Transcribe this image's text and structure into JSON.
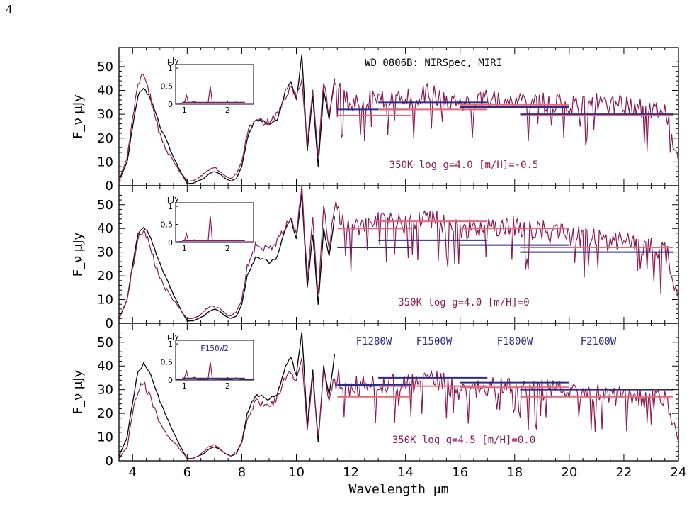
{
  "page": {
    "page_number": "4"
  },
  "colors": {
    "observed": "#000000",
    "model": "#8b1a55",
    "miri_observed": "#2b2b8c",
    "miri_model": "#e06a78",
    "text_model": "#8b1a55",
    "text_filter": "#2b2b8c"
  },
  "chart_data": [
    {
      "type": "line",
      "panel": "top",
      "title": "WD 0806B: NIRSpec, MIRI",
      "annotation": "350K log g=4.0 [m/H]=-0.5",
      "xlabel": "",
      "ylabel": "F_ν μJy",
      "xlim": [
        3.5,
        24
      ],
      "ylim": [
        0,
        58
      ],
      "x_ticks": [
        "4",
        "6",
        "8",
        "10",
        "12",
        "14",
        "16",
        "18",
        "20",
        "22",
        "24"
      ],
      "y_ticks": [
        "0",
        "10",
        "20",
        "30",
        "40",
        "50"
      ],
      "series": [
        {
          "role": "observed",
          "x": [
            3.5,
            3.8,
            4.0,
            4.2,
            4.4,
            4.6,
            4.8,
            5.0,
            5.2,
            5.5,
            5.8,
            6.0,
            6.2,
            6.4,
            6.6,
            6.8,
            7.0,
            7.2,
            7.4,
            7.6,
            7.8,
            8.0,
            8.2,
            8.5,
            8.8,
            9.0,
            9.3,
            9.6,
            9.8,
            10.0,
            10.2,
            10.4,
            10.6,
            10.8,
            11.0,
            11.2,
            11.4
          ],
          "y": [
            2,
            10,
            25,
            38,
            41,
            38,
            32,
            25,
            20,
            12,
            5,
            1,
            1,
            2,
            3,
            5,
            6,
            5,
            3,
            2,
            3,
            8,
            20,
            28,
            27,
            26,
            28,
            40,
            44,
            36,
            55,
            15,
            38,
            8,
            40,
            28,
            45
          ]
        },
        {
          "role": "model",
          "x": [
            3.5,
            3.8,
            4.0,
            4.2,
            4.4,
            4.6,
            4.8,
            5.0,
            5.2,
            5.5,
            5.8,
            6.0,
            6.2,
            6.4,
            6.6,
            6.8,
            7.0,
            7.2,
            7.4,
            7.6,
            7.8,
            8.0,
            8.2,
            8.5,
            8.8,
            9.0,
            9.3,
            9.6,
            9.8,
            10.0,
            10.2,
            10.4,
            10.6,
            10.8,
            11.0,
            11.2,
            11.4,
            12,
            13,
            14,
            15,
            16,
            17,
            18,
            19,
            20,
            21,
            22,
            23,
            23.6,
            24
          ],
          "y": [
            2,
            12,
            30,
            42,
            48,
            40,
            30,
            22,
            16,
            10,
            5,
            2,
            2,
            3,
            5,
            7,
            8,
            6,
            4,
            3,
            5,
            10,
            22,
            29,
            27,
            27,
            30,
            38,
            42,
            38,
            45,
            18,
            42,
            12,
            44,
            30,
            42,
            35,
            38,
            37,
            40,
            33,
            37,
            37,
            36,
            35,
            36,
            34,
            33,
            30,
            10
          ]
        }
      ],
      "miri": [
        {
          "x_range": [
            11.5,
            14.2
          ],
          "observed": 32,
          "model": 29.5
        },
        {
          "x_range": [
            13.0,
            17.0
          ],
          "observed": 35,
          "model": 32
        },
        {
          "x_range": [
            16.0,
            20.0
          ],
          "observed": 33,
          "model": 34
        },
        {
          "x_range": [
            18.2,
            23.8
          ],
          "observed": 30,
          "model": 29.5
        }
      ],
      "inset": {
        "ylabel": "μJy",
        "x_ticks": [
          "1",
          "2"
        ],
        "y_ticks": [
          "0",
          "0.5",
          "1"
        ],
        "xlim": [
          0.8,
          2.6
        ],
        "ylim": [
          0,
          1.1
        ],
        "observed_level": 0.05,
        "model_peak": 0.5
      }
    },
    {
      "type": "line",
      "panel": "middle",
      "annotation": "350K log g=4.0 [m/H]=0",
      "xlabel": "",
      "ylabel": "F_ν μJy",
      "xlim": [
        3.5,
        24
      ],
      "ylim": [
        0,
        58
      ],
      "x_ticks": [
        "4",
        "6",
        "8",
        "10",
        "12",
        "14",
        "16",
        "18",
        "20",
        "22",
        "24"
      ],
      "y_ticks": [
        "0",
        "10",
        "20",
        "30",
        "40",
        "50"
      ],
      "series": [
        {
          "role": "observed",
          "x": [
            3.5,
            3.8,
            4.0,
            4.2,
            4.4,
            4.6,
            4.8,
            5.0,
            5.2,
            5.5,
            5.8,
            6.0,
            6.2,
            6.4,
            6.6,
            6.8,
            7.0,
            7.2,
            7.4,
            7.6,
            7.8,
            8.0,
            8.2,
            8.5,
            8.8,
            9.0,
            9.3,
            9.6,
            9.8,
            10.0,
            10.2,
            10.4,
            10.6,
            10.8,
            11.0,
            11.2,
            11.4
          ],
          "y": [
            2,
            10,
            25,
            38,
            41,
            38,
            32,
            25,
            20,
            12,
            5,
            1,
            1,
            2,
            3,
            5,
            6,
            5,
            3,
            2,
            3,
            8,
            20,
            28,
            27,
            26,
            28,
            40,
            44,
            36,
            55,
            15,
            38,
            8,
            40,
            28,
            45
          ]
        },
        {
          "role": "model",
          "x": [
            3.5,
            3.8,
            4.0,
            4.2,
            4.4,
            4.6,
            4.8,
            5.0,
            5.2,
            5.5,
            5.8,
            6.0,
            6.2,
            6.4,
            6.6,
            6.8,
            7.0,
            7.2,
            7.4,
            7.6,
            7.8,
            8.0,
            8.2,
            8.5,
            8.8,
            9.0,
            9.3,
            9.6,
            9.8,
            10.0,
            10.2,
            10.4,
            10.6,
            10.8,
            11.0,
            11.2,
            11.4,
            12,
            13,
            14,
            15,
            16,
            17,
            18,
            19,
            20,
            21,
            22,
            23,
            23.6,
            24
          ],
          "y": [
            2,
            10,
            24,
            36,
            40,
            34,
            26,
            20,
            15,
            10,
            5,
            2,
            2,
            3,
            5,
            7,
            7,
            6,
            4,
            3,
            5,
            10,
            24,
            33,
            32,
            31,
            35,
            41,
            45,
            38,
            58,
            18,
            44,
            12,
            50,
            32,
            50,
            40,
            44,
            42,
            45,
            40,
            42,
            42,
            40,
            38,
            37,
            35,
            33,
            30,
            10
          ]
        }
      ],
      "miri": [
        {
          "x_range": [
            11.5,
            14.2
          ],
          "observed": 32,
          "model": 40
        },
        {
          "x_range": [
            13.0,
            17.0
          ],
          "observed": 35,
          "model": 43
        },
        {
          "x_range": [
            16.0,
            20.0
          ],
          "observed": 33,
          "model": 40
        },
        {
          "x_range": [
            18.2,
            23.8
          ],
          "observed": 30,
          "model": 32
        }
      ],
      "inset": {
        "ylabel": "μJy",
        "x_ticks": [
          "1",
          "2"
        ],
        "y_ticks": [
          "0",
          "0.5",
          "1"
        ],
        "xlim": [
          0.8,
          2.6
        ],
        "ylim": [
          0,
          1.1
        ],
        "observed_level": 0.05,
        "model_peak": 0.75
      }
    },
    {
      "type": "line",
      "panel": "bottom",
      "annotation": "350K log g=4.5 [m/H]=0.0",
      "xlabel": "Wavelength μm",
      "ylabel": "F_ν μJy",
      "xlim": [
        3.5,
        24
      ],
      "ylim": [
        0,
        58
      ],
      "x_ticks": [
        "4",
        "6",
        "8",
        "10",
        "12",
        "14",
        "16",
        "18",
        "20",
        "22",
        "24"
      ],
      "y_ticks": [
        "0",
        "10",
        "20",
        "30",
        "40",
        "50"
      ],
      "filters": [
        "F1280W",
        "F1500W",
        "F1800W",
        "F2100W"
      ],
      "series": [
        {
          "role": "observed",
          "x": [
            3.5,
            3.8,
            4.0,
            4.2,
            4.4,
            4.6,
            4.8,
            5.0,
            5.2,
            5.5,
            5.8,
            6.0,
            6.2,
            6.4,
            6.6,
            6.8,
            7.0,
            7.2,
            7.4,
            7.6,
            7.8,
            8.0,
            8.2,
            8.5,
            8.8,
            9.0,
            9.3,
            9.6,
            9.8,
            10.0,
            10.2,
            10.4,
            10.6,
            10.8,
            11.0,
            11.2,
            11.4
          ],
          "y": [
            2,
            10,
            25,
            38,
            41,
            38,
            32,
            25,
            20,
            12,
            5,
            1,
            1,
            2,
            3,
            5,
            6,
            5,
            3,
            2,
            3,
            8,
            20,
            28,
            27,
            26,
            28,
            40,
            44,
            36,
            55,
            15,
            38,
            8,
            40,
            28,
            45
          ]
        },
        {
          "role": "model",
          "x": [
            3.5,
            3.8,
            4.0,
            4.2,
            4.4,
            4.6,
            4.8,
            5.0,
            5.2,
            5.5,
            5.8,
            6.0,
            6.2,
            6.4,
            6.6,
            6.8,
            7.0,
            7.2,
            7.4,
            7.6,
            7.8,
            8.0,
            8.2,
            8.5,
            8.8,
            9.0,
            9.3,
            9.6,
            9.8,
            10.0,
            10.2,
            10.4,
            10.6,
            10.8,
            11.0,
            11.2,
            11.4,
            12,
            13,
            14,
            15,
            16,
            17,
            18,
            19,
            20,
            21,
            22,
            23,
            23.6,
            24
          ],
          "y": [
            1,
            6,
            20,
            30,
            33,
            28,
            22,
            16,
            12,
            8,
            4,
            1,
            1,
            2,
            4,
            6,
            7,
            5,
            3,
            2,
            4,
            8,
            18,
            25,
            24,
            23,
            27,
            35,
            38,
            33,
            45,
            14,
            36,
            10,
            38,
            26,
            36,
            32,
            34,
            33,
            36,
            30,
            32,
            32,
            31,
            30,
            29,
            28,
            27,
            26,
            8
          ]
        }
      ],
      "miri": [
        {
          "x_range": [
            11.5,
            14.2
          ],
          "observed": 32,
          "model": 27
        },
        {
          "x_range": [
            13.0,
            17.0
          ],
          "observed": 35,
          "model": 31.5
        },
        {
          "x_range": [
            16.0,
            20.0
          ],
          "observed": 33,
          "model": 31
        },
        {
          "x_range": [
            18.2,
            23.8
          ],
          "observed": 30,
          "model": 27
        }
      ],
      "inset": {
        "ylabel": "μJy",
        "filter_label": "F150W2",
        "x_ticks": [
          "1",
          "2"
        ],
        "y_ticks": [
          "0",
          "0.5",
          "1"
        ],
        "xlim": [
          0.8,
          2.6
        ],
        "ylim": [
          0,
          1.1
        ],
        "observed_level": 0.05,
        "model_peak": 0.5
      }
    }
  ]
}
